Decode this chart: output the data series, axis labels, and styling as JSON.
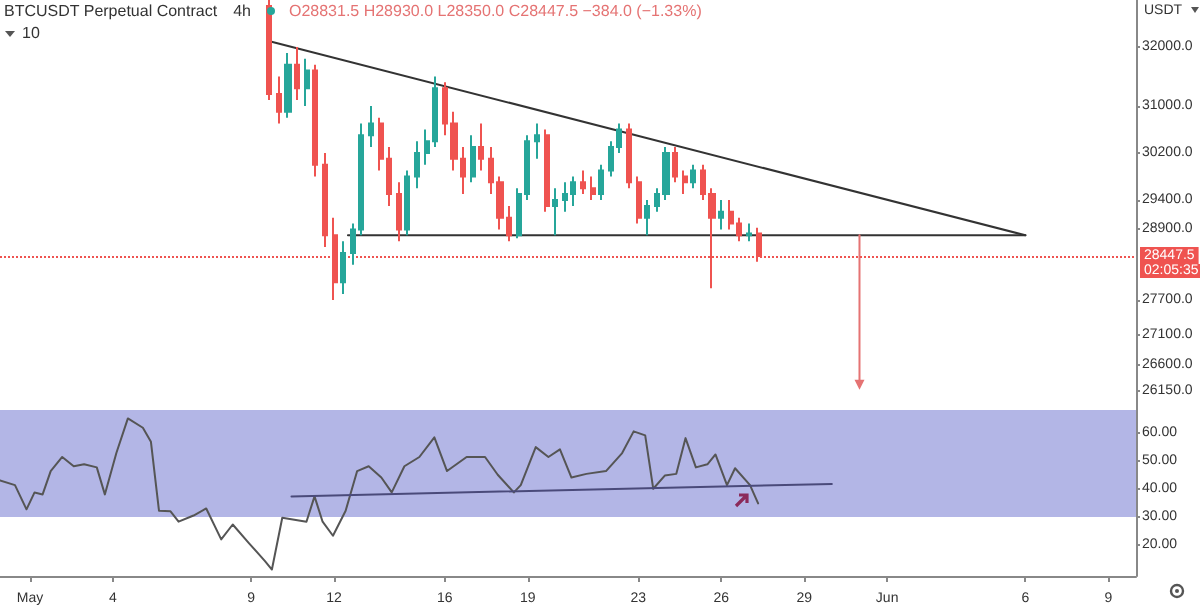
{
  "chart_data": [
    {
      "type": "candlestick",
      "title": "BTCUSDT Perpetual Contract",
      "subtitle": "4h",
      "ylabel": "USDT",
      "annotations": [
        "O28831.5 H28930.0 L28350.0 C28447.5 −384.0 (−1.33%)",
        "10",
        "02:05:35"
      ],
      "x": [
        "--05-09T16:00",
        "--05-10T00:00",
        "--05-10T08:00",
        "--05-10T16:00",
        "--05-11T00:00",
        "--05-11T08:00",
        "--05-11T16:00",
        "--05-12T00:00",
        "--05-12T08:00",
        "--05-12T16:00",
        "--05-13T00:00",
        "--05-13T08:00",
        "--05-13T16:00",
        "--05-14T00:00",
        "--05-14T08:00",
        "--05-14T16:00",
        "--05-15T00:00",
        "--05-15T08:00",
        "--05-15T16:00",
        "--05-16T00:00",
        "--05-16T08:00",
        "--05-16T16:00",
        "--05-17T00:00",
        "--05-17T08:00",
        "--05-17T16:00",
        "--05-18T00:00",
        "--05-18T08:00",
        "--05-18T16:00",
        "--05-19T00:00",
        "--05-19T08:00",
        "--05-19T16:00",
        "--05-20T00:00",
        "--05-20T08:00",
        "--05-20T16:00",
        "--05-21T00:00",
        "--05-21T08:00",
        "--05-21T16:00",
        "--05-22T00:00",
        "--05-22T08:00",
        "--05-22T16:00",
        "--05-23T00:00",
        "--05-23T08:00",
        "--05-23T16:00",
        "--05-24T00:00",
        "--05-24T08:00",
        "--05-24T16:00",
        "--05-25T00:00",
        "--05-25T08:00",
        "--05-25T16:00",
        "--05-26T00:00",
        "--05-26T08:00",
        "--05-26T16:00",
        "--05-27T00:00",
        "--05-27T08:00"
      ],
      "ohlc": [
        [
          32700,
          32800,
          31100,
          31200
        ],
        [
          31200,
          31500,
          30700,
          30900
        ],
        [
          30900,
          31900,
          30800,
          31700
        ],
        [
          31700,
          32000,
          31100,
          31300
        ],
        [
          31300,
          31800,
          31000,
          31600
        ],
        [
          31600,
          31700,
          29800,
          30000
        ],
        [
          30000,
          30200,
          28600,
          28800
        ],
        [
          28800,
          29100,
          27700,
          28000
        ],
        [
          28000,
          28700,
          27800,
          28500
        ],
        [
          28500,
          29000,
          28300,
          28900
        ],
        [
          28900,
          30700,
          28800,
          30500
        ],
        [
          30500,
          31000,
          30300,
          30700
        ],
        [
          30700,
          30800,
          29900,
          30100
        ],
        [
          30100,
          30300,
          29300,
          29500
        ],
        [
          29500,
          29700,
          28700,
          28900
        ],
        [
          28900,
          29900,
          28800,
          29800
        ],
        [
          29800,
          30400,
          29600,
          30200
        ],
        [
          30200,
          30600,
          30000,
          30400
        ],
        [
          30400,
          31500,
          30300,
          31300
        ],
        [
          31300,
          31400,
          30500,
          30700
        ],
        [
          30700,
          30900,
          29900,
          30100
        ],
        [
          30100,
          30300,
          29500,
          29800
        ],
        [
          29800,
          30500,
          29700,
          30300
        ],
        [
          30300,
          30700,
          29900,
          30100
        ],
        [
          30100,
          30300,
          29500,
          29700
        ],
        [
          29700,
          29800,
          28900,
          29100
        ],
        [
          29100,
          29300,
          28700,
          28800
        ],
        [
          28800,
          29600,
          28750,
          29500
        ],
        [
          29500,
          30500,
          29400,
          30400
        ],
        [
          30400,
          30700,
          30100,
          30500
        ],
        [
          30500,
          30600,
          29200,
          29300
        ],
        [
          29300,
          29600,
          28800,
          29400
        ],
        [
          29400,
          29700,
          29200,
          29500
        ],
        [
          29500,
          29800,
          29300,
          29700
        ],
        [
          29700,
          29900,
          29500,
          29600
        ],
        [
          29600,
          29800,
          29400,
          29500
        ],
        [
          29500,
          30000,
          29400,
          29900
        ],
        [
          29900,
          30400,
          29800,
          30300
        ],
        [
          30300,
          30700,
          30200,
          30600
        ],
        [
          30600,
          30700,
          29600,
          29700
        ],
        [
          29700,
          29800,
          29000,
          29100
        ],
        [
          29100,
          29400,
          28800,
          29300
        ],
        [
          29300,
          29600,
          29200,
          29500
        ],
        [
          29500,
          30300,
          29400,
          30200
        ],
        [
          30200,
          30300,
          29700,
          29800
        ],
        [
          29800,
          29900,
          29500,
          29700
        ],
        [
          29700,
          30000,
          29600,
          29900
        ],
        [
          29900,
          30000,
          29400,
          29500
        ],
        [
          29500,
          29600,
          27900,
          29100
        ],
        [
          29100,
          29400,
          28900,
          29200
        ],
        [
          29200,
          29400,
          28900,
          29000
        ],
        [
          29000,
          29100,
          28700,
          28800
        ],
        [
          28800,
          29000,
          28700,
          28831.5
        ],
        [
          28831.5,
          28930,
          28350,
          28447.5
        ]
      ],
      "colors": [
        "#ef5350",
        "#ef5350",
        "#26a69a",
        "#ef5350",
        "#26a69a",
        "#ef5350",
        "#ef5350",
        "#ef5350",
        "#26a69a",
        "#26a69a",
        "#26a69a",
        "#26a69a",
        "#ef5350",
        "#ef5350",
        "#ef5350",
        "#26a69a",
        "#26a69a",
        "#26a69a",
        "#26a69a",
        "#ef5350",
        "#ef5350",
        "#ef5350",
        "#26a69a",
        "#ef5350",
        "#ef5350",
        "#ef5350",
        "#ef5350",
        "#26a69a",
        "#26a69a",
        "#26a69a",
        "#ef5350",
        "#26a69a",
        "#26a69a",
        "#26a69a",
        "#ef5350",
        "#ef5350",
        "#26a69a",
        "#26a69a",
        "#26a69a",
        "#ef5350",
        "#ef5350",
        "#26a69a",
        "#26a69a",
        "#26a69a",
        "#ef5350",
        "#ef5350",
        "#26a69a",
        "#ef5350",
        "#ef5350",
        "#26a69a",
        "#ef5350",
        "#ef5350",
        "#26a69a",
        "#ef5350"
      ],
      "series": [
        {
          "type": "line",
          "color": "#333333",
          "x": [
            "--05-09T16:00",
            "--06-06T00:00"
          ],
          "values": [
            32100,
            28800
          ]
        },
        {
          "type": "line",
          "color": "#333333",
          "x": [
            "--05-12T12:00",
            "--06-06T00:00"
          ],
          "values": [
            28800,
            28800
          ]
        },
        {
          "type": "line",
          "color": "#e57373",
          "x": [
            "--05-31T00:00",
            "--05-31T00:00"
          ],
          "values": [
            28800,
            26260
          ]
        }
      ],
      "ref_lines": [
        {
          "axis": "y",
          "value": 28447.5,
          "label": "28447.5",
          "color": "#ef5350",
          "line_style": "dotted"
        }
      ],
      "xlim": [
        "--04-29T22:00",
        "--06-10T00:00"
      ],
      "ylim": [
        25830,
        32800
      ],
      "yticks": [
        {
          "value": 32000,
          "label": "32000.0"
        },
        {
          "value": 31000,
          "label": "31000.0"
        },
        {
          "value": 30200,
          "label": "30200.0"
        },
        {
          "value": 29400,
          "label": "29400.0"
        },
        {
          "value": 28900,
          "label": "28900.0"
        },
        {
          "value": 27700,
          "label": "27700.0"
        },
        {
          "value": 27100,
          "label": "27100.0"
        },
        {
          "value": 26600,
          "label": "26600.0"
        },
        {
          "value": 26150,
          "label": "26150.0"
        }
      ],
      "tick_labels": "y",
      "grid": false
    },
    {
      "type": "line",
      "series": [
        {
          "color": "#555555",
          "x": [
            "--04-29T22:00",
            "--04-30T11:00",
            "--04-30T21:00",
            "--05-01T04:00",
            "--05-01T11:00",
            "--05-01T18:00",
            "--05-02T04:00",
            "--05-02T14:00",
            "--05-02T23:00",
            "--05-03T10:00",
            "--05-03T17:00",
            "--05-04T03:00",
            "--05-04T13:00",
            "--05-05T02:00",
            "--05-05T09:00",
            "--05-05T16:00",
            "--05-06T02:00",
            "--05-06T09:00",
            "--05-06T22:00",
            "--05-07T09:00",
            "--05-07T22:00",
            "--05-08T08:00",
            "--05-08T22:00",
            "--05-09T12:00",
            "--05-09T18:00",
            "--05-10T03:00",
            "--05-11T00:00",
            "--05-11T07:00",
            "--05-11T14:00",
            "--05-11T23:00",
            "--05-12T10:00",
            "--05-12T20:00",
            "--05-13T06:00",
            "--05-13T17:00",
            "--05-14T02:00",
            "--05-14T13:00",
            "--05-15T02:00",
            "--05-15T15:00",
            "--05-16T02:00",
            "--05-16T19:00",
            "--05-17T11:00",
            "--05-17T22:00",
            "--05-18T12:00",
            "--05-18T18:00",
            "--05-19T07:00",
            "--05-19T18:00",
            "--05-20T04:00",
            "--05-20T14:00",
            "--05-21T03:00",
            "--05-21T20:00",
            "--05-22T10:00",
            "--05-22T20:00",
            "--05-23T06:00",
            "--05-23T13:00",
            "--05-23T23:00",
            "--05-24T09:00",
            "--05-24T17:00",
            "--05-25T02:00",
            "--05-25T12:00",
            "--05-25T19:00",
            "--05-26T05:00",
            "--05-26T12:00",
            "--05-27T01:00",
            "--05-27T08:00"
          ],
          "values": [
            43,
            41.3,
            32.7,
            38.7,
            38,
            46.3,
            51.3,
            48,
            48.7,
            47.6,
            38,
            52.7,
            65,
            61.7,
            56.7,
            32.2,
            32,
            28.3,
            30.5,
            33,
            22,
            27.3,
            20.7,
            14.3,
            11.3,
            29.7,
            28.3,
            37.3,
            28.3,
            23.3,
            32.2,
            46.3,
            48,
            44,
            38.7,
            48,
            51.3,
            58.3,
            46.3,
            51.3,
            51.3,
            45,
            38.7,
            41.3,
            54.8,
            51.3,
            54,
            44,
            45.3,
            46.3,
            52.7,
            60.4,
            59,
            40,
            44.7,
            45.3,
            58,
            47.6,
            48.7,
            52.2,
            41.3,
            47.3,
            41.3,
            34.8
          ]
        },
        {
          "color": "#4a4a7a",
          "x": [
            "--05-10T11:00",
            "--05-30T00:00"
          ],
          "values": [
            37.3,
            41.7
          ]
        }
      ],
      "bands": [
        {
          "axis": "y",
          "from": 30,
          "to": 68,
          "color": "#b3b6e6"
        }
      ],
      "xlim": [
        "--04-29T22:00",
        "--06-10T00:00"
      ],
      "xticks": [
        {
          "value": "--05-01",
          "label": "May"
        },
        {
          "value": "--05-04",
          "label": "4"
        },
        {
          "value": "--05-09",
          "label": "9"
        },
        {
          "value": "--05-12",
          "label": "12"
        },
        {
          "value": "--05-16",
          "label": "16"
        },
        {
          "value": "--05-19",
          "label": "19"
        },
        {
          "value": "--05-23",
          "label": "23"
        },
        {
          "value": "--05-26",
          "label": "26"
        },
        {
          "value": "--05-29",
          "label": "29"
        },
        {
          "value": "--06-01",
          "label": "Jun"
        },
        {
          "value": "--06-06",
          "label": "6"
        },
        {
          "value": "--06-09",
          "label": "9"
        }
      ],
      "ylim": [
        9,
        68
      ],
      "yticks": [
        {
          "value": 20,
          "label": "20.00"
        },
        {
          "value": 30,
          "label": "30.00"
        },
        {
          "value": 40,
          "label": "40.00"
        },
        {
          "value": 50,
          "label": "50.00"
        },
        {
          "value": 60,
          "label": "60.00"
        }
      ],
      "grid": false
    }
  ]
}
